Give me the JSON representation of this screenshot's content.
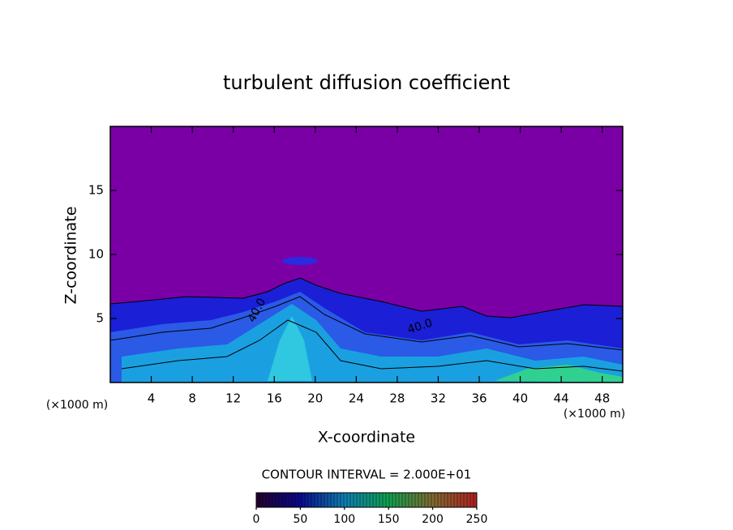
{
  "chart_data": {
    "type": "contour",
    "title": "turbulent diffusion coefficient",
    "xlabel": "X-coordinate",
    "ylabel": "Z-coordinate",
    "x_unit": "(×1000 m)",
    "y_unit": "(×1000 m)",
    "xlim": [
      0,
      50
    ],
    "xticks": [
      4,
      8,
      12,
      16,
      20,
      24,
      28,
      32,
      36,
      40,
      44,
      48
    ],
    "ylim": [
      0,
      20
    ],
    "yticks": [
      5,
      10,
      15
    ],
    "contour_labels": [
      "40.0",
      "40.0"
    ],
    "contour_interval_label": "CONTOUR INTERVAL = 2.000E+01",
    "colorbar": {
      "clim": [
        0,
        250
      ],
      "ticks": [
        0,
        50,
        100,
        150,
        200,
        250
      ],
      "colormap": [
        "#24002e",
        "#0a0a8c",
        "#0e7fb0",
        "#10a050",
        "#806a30",
        "#b02020"
      ]
    }
  }
}
